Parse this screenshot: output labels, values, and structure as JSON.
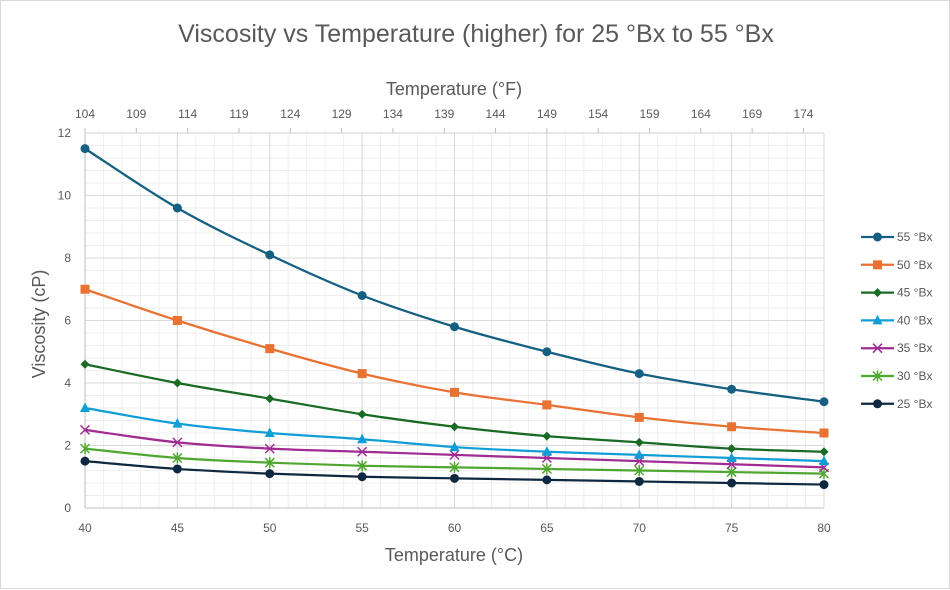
{
  "chart_data": {
    "type": "line",
    "title": "Viscosity vs Temperature (higher) for 25 °Bx to 55 °Bx",
    "xlabel": "Temperature (°C)",
    "x2label": "Temperature (°F)",
    "ylabel": "Viscosity (cP)",
    "xlim": [
      40,
      80
    ],
    "ylim": [
      0,
      12
    ],
    "x_ticks": [
      40,
      45,
      50,
      55,
      60,
      65,
      70,
      75,
      80
    ],
    "y_ticks": [
      0,
      2,
      4,
      6,
      8,
      10,
      12
    ],
    "x2_ticks": [
      104,
      109,
      114,
      119,
      124,
      129,
      134,
      139,
      144,
      149,
      154,
      159,
      164,
      169,
      174
    ],
    "x2_range_f": [
      104,
      176
    ],
    "grid": true,
    "legend_position": "right",
    "smoothed": true,
    "x": [
      40,
      45,
      50,
      55,
      60,
      65,
      70,
      75,
      80
    ],
    "series": [
      {
        "name": "55 °Bx",
        "color": "#156082",
        "marker": "circle",
        "values": [
          11.5,
          9.6,
          8.1,
          6.8,
          5.8,
          5.0,
          4.3,
          3.8,
          3.4
        ]
      },
      {
        "name": "50 °Bx",
        "color": "#E97132",
        "marker": "square",
        "values": [
          7.0,
          6.0,
          5.1,
          4.3,
          3.7,
          3.3,
          2.9,
          2.6,
          2.4
        ]
      },
      {
        "name": "45 °Bx",
        "color": "#196B24",
        "marker": "diamond",
        "values": [
          4.6,
          4.0,
          3.5,
          3.0,
          2.6,
          2.3,
          2.1,
          1.9,
          1.8
        ]
      },
      {
        "name": "40 °Bx",
        "color": "#0F9ED5",
        "marker": "triangle",
        "values": [
          3.2,
          2.7,
          2.4,
          2.2,
          1.95,
          1.8,
          1.7,
          1.6,
          1.5
        ]
      },
      {
        "name": "35 °Bx",
        "color": "#A02B93",
        "marker": "x",
        "values": [
          2.5,
          2.1,
          1.9,
          1.8,
          1.7,
          1.6,
          1.5,
          1.4,
          1.3
        ]
      },
      {
        "name": "30 °Bx",
        "color": "#4EA72E",
        "marker": "star",
        "values": [
          1.9,
          1.6,
          1.45,
          1.35,
          1.3,
          1.25,
          1.2,
          1.15,
          1.1
        ]
      },
      {
        "name": "25 °Bx",
        "color": "#0E2841",
        "marker": "circle",
        "values": [
          1.5,
          1.25,
          1.1,
          1.0,
          0.95,
          0.9,
          0.85,
          0.8,
          0.75
        ]
      }
    ]
  }
}
